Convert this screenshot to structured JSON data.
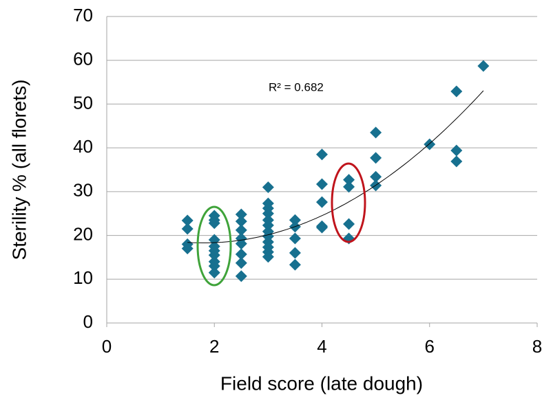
{
  "chart_data": {
    "type": "scatter",
    "x_label": "Field score (late dough)",
    "y_label": "Sterility % (all florets)",
    "annotation": "R² = 0.682",
    "xlim": [
      0,
      8
    ],
    "xticks": [
      0,
      2,
      4,
      6,
      8
    ],
    "ylim": [
      0,
      70
    ],
    "yticks": [
      0,
      10,
      20,
      30,
      40,
      50,
      60,
      70
    ],
    "grid": true,
    "color": "#17708f",
    "x": [
      1.5,
      1.5,
      1.5,
      1.5,
      2,
      2,
      2,
      2,
      2,
      2,
      2,
      2,
      2,
      2,
      2.5,
      2.5,
      2.5,
      2.5,
      2.5,
      2.5,
      2.5,
      2.5,
      3,
      3,
      3,
      3,
      3,
      3,
      3,
      3,
      3,
      3,
      3,
      3,
      3.5,
      3.5,
      3.5,
      3.5,
      3.5,
      4,
      4,
      4,
      4,
      4,
      4.5,
      4.5,
      4.5,
      4.5,
      5,
      5,
      5,
      5,
      6,
      6.5,
      6.5,
      6.5,
      7
    ],
    "values": [
      23.4,
      21.5,
      18.0,
      17.0,
      24.5,
      23.5,
      22.8,
      19.0,
      17.5,
      16.5,
      15.5,
      14.0,
      13.0,
      11.5,
      24.8,
      23.2,
      21.2,
      19.3,
      18.1,
      15.7,
      13.7,
      10.7,
      31.0,
      27.3,
      26.2,
      25.0,
      23.5,
      22.3,
      20.9,
      19.8,
      18.5,
      17.3,
      16.2,
      15.1,
      23.5,
      22.0,
      19.3,
      16.0,
      13.3,
      38.5,
      31.7,
      27.6,
      22.1,
      21.8,
      32.7,
      31.1,
      22.6,
      19.3,
      43.5,
      37.7,
      33.4,
      31.4,
      40.8,
      52.9,
      39.4,
      36.9,
      58.7
    ],
    "trendline": {
      "type": "polynomial",
      "coefficients": [
        1.285,
        -4.626,
        22.46
      ],
      "xlim": [
        1.5,
        7
      ],
      "color": "#000000"
    }
  }
}
